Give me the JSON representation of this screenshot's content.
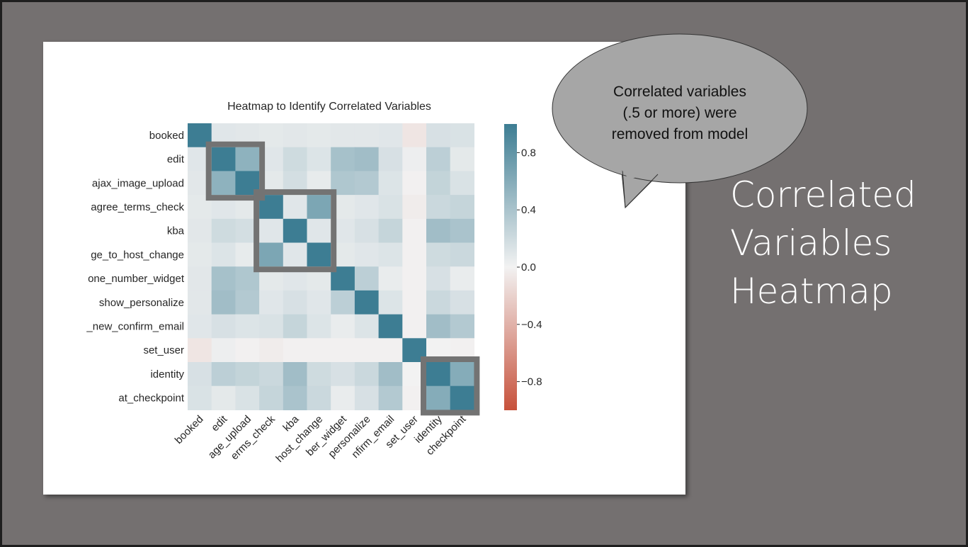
{
  "slide": {
    "title_lines": [
      "Correlated",
      "Variables",
      "Heatmap"
    ],
    "callout_lines": [
      "Correlated variables",
      "(.5 or more) were",
      "removed from model"
    ]
  },
  "chart_data": {
    "type": "heatmap",
    "title": "Heatmap to Identify Correlated Variables",
    "labels": [
      "booked",
      "edit",
      "ajax_image_upload",
      "agree_terms_check",
      "kba",
      "change_to_host_change",
      "phone_number_widget",
      "show_personalize",
      "new_confirm_email",
      "set_user",
      "identity",
      "at_checkpoint"
    ],
    "y_tick_labels": [
      "booked",
      "edit",
      "ajax_image_upload",
      "agree_terms_check",
      "kba",
      "ge_to_host_change",
      "one_number_widget",
      "show_personalize",
      "_new_confirm_email",
      "set_user",
      "identity",
      "at_checkpoint"
    ],
    "x_tick_labels": [
      "booked",
      "edit",
      "age_upload",
      "erms_check",
      "kba",
      "host_change",
      "ber_widget",
      "personalize",
      "nfirm_email",
      "set_user",
      "identity",
      "checkpoint"
    ],
    "values": [
      [
        1.0,
        0.1,
        0.09,
        0.08,
        0.09,
        0.08,
        0.09,
        0.09,
        0.1,
        -0.08,
        0.15,
        0.14
      ],
      [
        0.1,
        1.0,
        0.55,
        0.1,
        0.2,
        0.12,
        0.42,
        0.45,
        0.15,
        0.03,
        0.3,
        0.08
      ],
      [
        0.09,
        0.55,
        1.0,
        0.08,
        0.17,
        0.06,
        0.37,
        0.35,
        0.12,
        -0.01,
        0.26,
        0.14
      ],
      [
        0.08,
        0.1,
        0.08,
        1.0,
        0.1,
        0.65,
        0.08,
        0.1,
        0.14,
        -0.04,
        0.22,
        0.25
      ],
      [
        0.09,
        0.2,
        0.17,
        0.1,
        1.0,
        0.1,
        0.1,
        0.15,
        0.25,
        -0.01,
        0.45,
        0.4
      ],
      [
        0.08,
        0.12,
        0.06,
        0.65,
        0.1,
        1.0,
        0.08,
        0.1,
        0.12,
        -0.01,
        0.2,
        0.22
      ],
      [
        0.09,
        0.42,
        0.37,
        0.08,
        0.1,
        0.08,
        1.0,
        0.3,
        0.05,
        -0.01,
        0.15,
        0.05
      ],
      [
        0.09,
        0.45,
        0.35,
        0.1,
        0.15,
        0.1,
        0.3,
        1.0,
        0.12,
        -0.01,
        0.22,
        0.15
      ],
      [
        0.1,
        0.15,
        0.12,
        0.14,
        0.25,
        0.12,
        0.05,
        0.12,
        1.0,
        -0.01,
        0.45,
        0.35
      ],
      [
        -0.08,
        0.03,
        -0.01,
        -0.04,
        -0.01,
        -0.01,
        -0.01,
        -0.01,
        -0.01,
        1.0,
        0.0,
        -0.01
      ],
      [
        0.15,
        0.3,
        0.26,
        0.22,
        0.45,
        0.2,
        0.15,
        0.22,
        0.45,
        0.0,
        1.0,
        0.6
      ],
      [
        0.14,
        0.08,
        0.14,
        0.25,
        0.4,
        0.22,
        0.05,
        0.15,
        0.35,
        -0.01,
        0.6,
        1.0
      ]
    ],
    "vmin": -1.0,
    "vmax": 1.0,
    "colorbar_ticks": [
      0.8,
      0.4,
      0.0,
      -0.4,
      -0.8
    ],
    "colorbar_tick_labels": [
      "0.8",
      "0.4",
      "0.0",
      "−0.4",
      "−0.8"
    ],
    "colormap": {
      "negative": "#c7513b",
      "center": "#f2f2f2",
      "positive": "#3d7d93"
    },
    "highlight_boxes": [
      {
        "from_index": 1,
        "to_index": 2
      },
      {
        "from_index": 3,
        "to_index": 5
      },
      {
        "from_index": 10,
        "to_index": 11
      }
    ],
    "highlight_color": "#737373"
  }
}
